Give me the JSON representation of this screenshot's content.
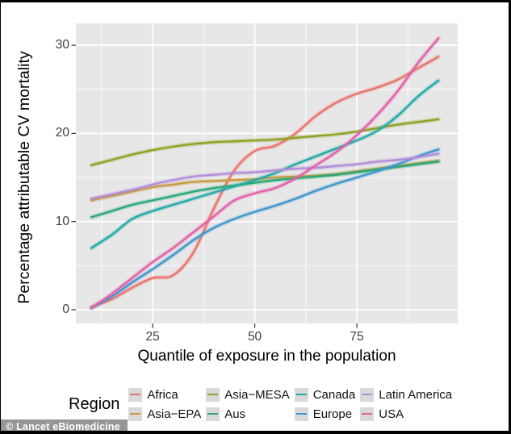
{
  "watermark": "© Lancet eBiomedicine",
  "colors": {
    "panel_background": "#E7E7E7",
    "gridline": "#FFFFFF",
    "tick_text": "#404040",
    "axis_title_text": "#000000",
    "legend_key_background": "#D9D9D9"
  },
  "chart_data": {
    "type": "line",
    "title": "",
    "xlabel": "Quantile of exposure in the population",
    "ylabel": "Percentage attributable CV mortality",
    "legend_title": "Region",
    "legend_position": "bottom",
    "grid": "white major and minor gridlines on gray panel",
    "x": [
      10,
      15,
      20,
      25,
      30,
      35,
      40,
      45,
      50,
      55,
      60,
      65,
      70,
      75,
      80,
      85,
      90,
      95
    ],
    "xticks": [
      25,
      50,
      75
    ],
    "yticks": [
      0,
      10,
      20,
      30
    ],
    "xlim": [
      6.2,
      99.7
    ],
    "ylim": [
      -1.56,
      32.48
    ],
    "series": [
      {
        "name": "Africa",
        "color": "#E9736B",
        "values": [
          0.3,
          1.2,
          2.5,
          3.6,
          3.9,
          6.5,
          11.5,
          15.8,
          18.0,
          18.6,
          20.0,
          22.0,
          23.5,
          24.5,
          25.2,
          26.1,
          27.4,
          28.7
        ]
      },
      {
        "name": "Asia−EPA",
        "color": "#C59B40",
        "values": [
          12.4,
          12.9,
          13.4,
          13.9,
          14.2,
          14.5,
          14.6,
          14.7,
          14.8,
          15.0,
          15.1,
          15.2,
          15.4,
          15.7,
          16.0,
          16.3,
          16.6,
          16.9
        ]
      },
      {
        "name": "Asia−MESA",
        "color": "#8FA023",
        "values": [
          16.4,
          17.0,
          17.6,
          18.1,
          18.5,
          18.8,
          19.0,
          19.1,
          19.2,
          19.3,
          19.5,
          19.7,
          19.9,
          20.2,
          20.6,
          21.0,
          21.3,
          21.6
        ]
      },
      {
        "name": "Aus",
        "color": "#29A878",
        "values": [
          10.5,
          11.2,
          11.9,
          12.4,
          12.9,
          13.4,
          13.8,
          14.1,
          14.4,
          14.7,
          14.9,
          15.1,
          15.3,
          15.6,
          15.9,
          16.2,
          16.5,
          16.8
        ]
      },
      {
        "name": "Canada",
        "color": "#22AAA6",
        "values": [
          7.0,
          8.5,
          10.3,
          11.2,
          11.9,
          12.6,
          13.3,
          14.0,
          14.7,
          15.5,
          16.5,
          17.4,
          18.3,
          19.2,
          20.3,
          22.0,
          24.2,
          26.0
        ]
      },
      {
        "name": "Europe",
        "color": "#3E96CE",
        "values": [
          0.2,
          1.5,
          3.1,
          4.6,
          6.2,
          7.9,
          9.3,
          10.3,
          11.1,
          11.8,
          12.6,
          13.5,
          14.3,
          15.0,
          15.7,
          16.5,
          17.4,
          18.2
        ]
      },
      {
        "name": "Latin America",
        "color": "#B48CD9",
        "values": [
          12.6,
          13.1,
          13.6,
          14.2,
          14.7,
          15.1,
          15.3,
          15.5,
          15.6,
          15.8,
          16.0,
          16.1,
          16.3,
          16.5,
          16.8,
          17.0,
          17.3,
          17.7
        ]
      },
      {
        "name": "USA",
        "color": "#E45FA9",
        "values": [
          0.2,
          1.8,
          3.6,
          5.4,
          7.0,
          8.8,
          10.6,
          12.4,
          13.2,
          13.8,
          14.9,
          16.4,
          17.9,
          19.8,
          22.1,
          24.8,
          28.0,
          30.8
        ]
      }
    ]
  }
}
